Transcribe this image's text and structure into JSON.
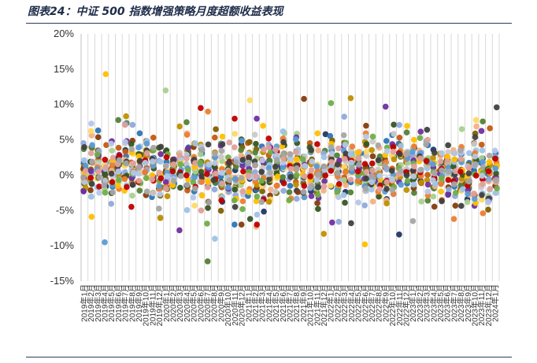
{
  "header": {
    "title": "图表24：中证 500 指数增强策略月度超额收益表现"
  },
  "chart_data": {
    "type": "scatter",
    "title": "图表24：中证 500 指数增强策略月度超额收益表现",
    "xlabel": "",
    "ylabel": "",
    "ylim": [
      -15,
      20
    ],
    "yticks": [
      "20%",
      "15%",
      "10%",
      "5%",
      "0%",
      "-5%",
      "-10%",
      "-15%"
    ],
    "ytick_values": [
      20,
      15,
      10,
      5,
      0,
      -5,
      -10,
      -15
    ],
    "grid": "vertical",
    "legend": "none",
    "x": [
      "2019年1月",
      "2019年2月",
      "2019年3月",
      "2019年4月",
      "2019年5月",
      "2019年6月",
      "2019年7月",
      "2019年8月",
      "2019年9月",
      "2019年10月",
      "2019年11月",
      "2019年12月",
      "2020年1月",
      "2020年2月",
      "2020年3月",
      "2020年4月",
      "2020年5月",
      "2020年6月",
      "2020年7月",
      "2020年8月",
      "2020年9月",
      "2020年10月",
      "2020年11月",
      "2020年12月",
      "2021年1月",
      "2021年2月",
      "2021年3月",
      "2021年4月",
      "2021年5月",
      "2021年6月",
      "2021年7月",
      "2021年8月",
      "2021年9月",
      "2021年10月",
      "2021年11月",
      "2021年12月",
      "2022年1月",
      "2022年2月",
      "2022年3月",
      "2022年4月",
      "2022年5月",
      "2022年6月",
      "2022年7月",
      "2022年8月",
      "2022年9月",
      "2022年10月",
      "2022年11月",
      "2022年12月",
      "2023年1月",
      "2023年2月",
      "2023年3月",
      "2023年4月",
      "2023年5月",
      "2023年6月",
      "2023年7月",
      "2023年8月",
      "2023年9月",
      "2023年10月",
      "2023年11月",
      "2023年12月",
      "2024年1月"
    ],
    "series_colors": [
      "#1f3864",
      "#2e75b6",
      "#c55a11",
      "#7f6000",
      "#538135",
      "#843c0c",
      "#f4b183",
      "#a9d18e",
      "#8faadc",
      "#c9c9c9",
      "#ffd966",
      "#bf9000",
      "#7030a0",
      "#375623",
      "#9dc3e6",
      "#ed7d31",
      "#ffc000",
      "#5b9bd5",
      "#70ad47",
      "#c00000",
      "#404040",
      "#b4c7e7",
      "#e2a09a",
      "#a5a5a5"
    ],
    "extremes": [
      {
        "month": "2019年4月",
        "max": 14.3,
        "min": -9.5
      },
      {
        "month": "2019年6月",
        "max": 7.8,
        "min": -1.5
      },
      {
        "month": "2019年12月",
        "max": 6.1,
        "min": -6.0
      },
      {
        "month": "2020年1月",
        "max": 12.0,
        "min": -2.0
      },
      {
        "month": "2020年3月",
        "max": 6.9,
        "min": -7.8
      },
      {
        "month": "2020年6月",
        "max": 9.5,
        "min": -5.0
      },
      {
        "month": "2020年7月",
        "max": 9.0,
        "min": -12.2
      },
      {
        "month": "2020年8月",
        "max": 6.5,
        "min": -9.0
      },
      {
        "month": "2020年11月",
        "max": 8.0,
        "min": -4.5
      },
      {
        "month": "2021年1月",
        "max": 10.6,
        "min": -6.2
      },
      {
        "month": "2021年2月",
        "max": 8.0,
        "min": -7.3
      },
      {
        "month": "2021年9月",
        "max": 10.8,
        "min": -2.5
      },
      {
        "month": "2021年12月",
        "max": 5.8,
        "min": -8.3
      },
      {
        "month": "2022年1月",
        "max": 10.2,
        "min": -6.7
      },
      {
        "month": "2022年4月",
        "max": 10.9,
        "min": -6.8
      },
      {
        "month": "2022年6月",
        "max": 7.0,
        "min": -9.8
      },
      {
        "month": "2022年9月",
        "max": 9.7,
        "min": -4.0
      },
      {
        "month": "2022年11月",
        "max": 7.1,
        "min": -8.4
      },
      {
        "month": "2023年1月",
        "max": 5.0,
        "min": -6.5
      },
      {
        "month": "2023年7月",
        "max": 5.2,
        "min": -6.2
      },
      {
        "month": "2023年11月",
        "max": 7.6,
        "min": -5.4
      },
      {
        "month": "2024年1月",
        "max": 9.6,
        "min": -2.5
      }
    ],
    "series_count": 24,
    "seed": 500
  }
}
